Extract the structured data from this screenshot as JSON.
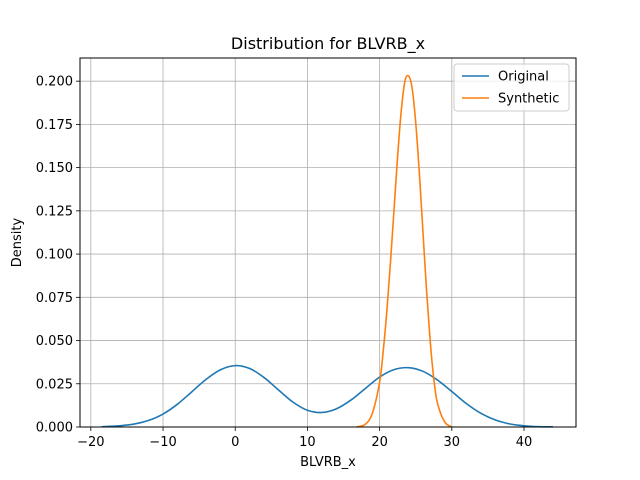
{
  "chart_data": {
    "type": "line",
    "title": "Distribution for BLVRB_x",
    "xlabel": "BLVRB_x",
    "ylabel": "Density",
    "xlim": [
      -21.5,
      47.2
    ],
    "ylim": [
      0,
      0.2134
    ],
    "x_ticks": [
      -20,
      -10,
      0,
      10,
      20,
      30,
      40
    ],
    "x_tick_labels": [
      "−20",
      "−10",
      "0",
      "10",
      "20",
      "30",
      "40"
    ],
    "y_ticks": [
      0,
      0.025,
      0.05,
      0.075,
      0.1,
      0.125,
      0.15,
      0.175,
      0.2
    ],
    "y_tick_labels": [
      "0.000",
      "0.025",
      "0.050",
      "0.075",
      "0.100",
      "0.125",
      "0.150",
      "0.175",
      "0.200"
    ],
    "grid": true,
    "legend_position": "top-right",
    "series": [
      {
        "name": "Original",
        "color": "#1f77b4",
        "x": [
          -18.5,
          -16,
          -14,
          -12,
          -10,
          -8,
          -6,
          -4,
          -2,
          0,
          2,
          4,
          6,
          8,
          10,
          12,
          14,
          16,
          18,
          20,
          22,
          24,
          26,
          28,
          30,
          32,
          34,
          36,
          38,
          40,
          42,
          44
        ],
        "y": [
          0.0002,
          0.0007,
          0.0017,
          0.0038,
          0.0075,
          0.0132,
          0.0204,
          0.0277,
          0.0332,
          0.0355,
          0.0338,
          0.0286,
          0.0214,
          0.0144,
          0.0097,
          0.0084,
          0.0105,
          0.0155,
          0.0222,
          0.0289,
          0.0332,
          0.0343,
          0.0322,
          0.0272,
          0.0205,
          0.0136,
          0.008,
          0.0041,
          0.0018,
          0.0007,
          0.0002,
          0.0001
        ]
      },
      {
        "name": "Synthetic",
        "color": "#ff7f0e",
        "x": [
          16.8,
          18,
          19,
          20,
          20.5,
          21,
          21.5,
          22,
          22.5,
          23,
          23.5,
          24,
          24.5,
          25,
          25.5,
          26,
          26.5,
          27,
          27.5,
          28,
          29,
          30
        ],
        "y": [
          0,
          0.0015,
          0.008,
          0.026,
          0.044,
          0.067,
          0.095,
          0.126,
          0.157,
          0.183,
          0.2,
          0.203,
          0.196,
          0.176,
          0.147,
          0.113,
          0.079,
          0.05,
          0.028,
          0.014,
          0.003,
          0
        ]
      }
    ]
  }
}
